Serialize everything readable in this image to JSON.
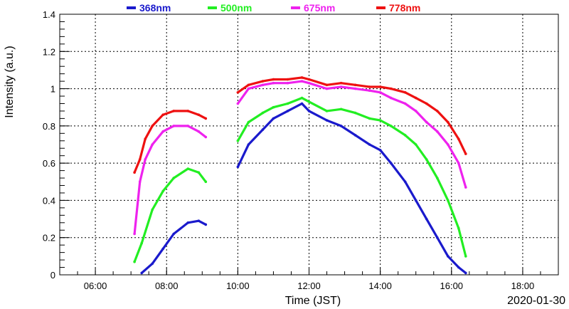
{
  "chart_data": {
    "type": "line",
    "title": "",
    "xlabel": "Time (JST)",
    "ylabel": "Intensity (a.u.)",
    "date_label": "2020-01-30",
    "xlim_hours": [
      5,
      19
    ],
    "ylim": [
      0,
      1.4
    ],
    "x_ticks": [
      {
        "hour": 6,
        "label": "06:00"
      },
      {
        "hour": 8,
        "label": "08:00"
      },
      {
        "hour": 10,
        "label": "10:00"
      },
      {
        "hour": 12,
        "label": "12:00"
      },
      {
        "hour": 14,
        "label": "14:00"
      },
      {
        "hour": 16,
        "label": "16:00"
      },
      {
        "hour": 18,
        "label": "18:00"
      }
    ],
    "y_ticks": [
      {
        "value": 0,
        "label": "0"
      },
      {
        "value": 0.2,
        "label": "0.2"
      },
      {
        "value": 0.4,
        "label": "0.4"
      },
      {
        "value": 0.6,
        "label": "0.6"
      },
      {
        "value": 0.8,
        "label": "0.8"
      },
      {
        "value": 1.0,
        "label": "1"
      },
      {
        "value": 1.2,
        "label": "1.2"
      },
      {
        "value": 1.4,
        "label": "1.4"
      }
    ],
    "grid": true,
    "legend_position": "top",
    "series": [
      {
        "name": "368nm",
        "color": "#1a1acc",
        "segments": [
          {
            "x": [
              7.3,
              7.6,
              7.9,
              8.2,
              8.6,
              8.9,
              9.1
            ],
            "y": [
              0.01,
              0.06,
              0.14,
              0.22,
              0.28,
              0.29,
              0.27
            ]
          },
          {
            "x": [
              10.0,
              10.3,
              10.7,
              11.0,
              11.4,
              11.8,
              12.0,
              12.5,
              12.9,
              13.3,
              13.7,
              14.0,
              14.3,
              14.7,
              15.0,
              15.3,
              15.6,
              15.9,
              16.2,
              16.4
            ],
            "y": [
              0.58,
              0.7,
              0.78,
              0.84,
              0.88,
              0.92,
              0.88,
              0.83,
              0.8,
              0.75,
              0.7,
              0.67,
              0.6,
              0.5,
              0.4,
              0.3,
              0.2,
              0.1,
              0.04,
              0.01
            ]
          }
        ]
      },
      {
        "name": "500nm",
        "color": "#22ee22",
        "segments": [
          {
            "x": [
              7.1,
              7.3,
              7.6,
              7.9,
              8.2,
              8.6,
              8.9,
              9.1
            ],
            "y": [
              0.07,
              0.17,
              0.35,
              0.45,
              0.52,
              0.57,
              0.55,
              0.5
            ]
          },
          {
            "x": [
              10.0,
              10.3,
              10.7,
              11.0,
              11.4,
              11.8,
              12.0,
              12.5,
              12.9,
              13.3,
              13.7,
              14.0,
              14.3,
              14.7,
              15.0,
              15.3,
              15.6,
              15.9,
              16.2,
              16.4
            ],
            "y": [
              0.72,
              0.82,
              0.87,
              0.9,
              0.92,
              0.95,
              0.93,
              0.88,
              0.89,
              0.87,
              0.84,
              0.83,
              0.8,
              0.75,
              0.7,
              0.62,
              0.52,
              0.4,
              0.25,
              0.1
            ]
          }
        ]
      },
      {
        "name": "675nm",
        "color": "#ee22ee",
        "segments": [
          {
            "x": [
              7.1,
              7.25,
              7.4,
              7.6,
              7.9,
              8.2,
              8.6,
              8.9,
              9.1
            ],
            "y": [
              0.22,
              0.5,
              0.62,
              0.7,
              0.77,
              0.8,
              0.8,
              0.77,
              0.74
            ]
          },
          {
            "x": [
              10.0,
              10.3,
              10.7,
              11.0,
              11.4,
              11.8,
              12.0,
              12.5,
              12.9,
              13.3,
              13.7,
              14.0,
              14.3,
              14.7,
              15.0,
              15.3,
              15.6,
              15.9,
              16.2,
              16.4
            ],
            "y": [
              0.92,
              1.0,
              1.02,
              1.03,
              1.03,
              1.04,
              1.03,
              1.0,
              1.01,
              1.0,
              0.99,
              0.98,
              0.95,
              0.92,
              0.88,
              0.82,
              0.77,
              0.7,
              0.6,
              0.47
            ]
          }
        ]
      },
      {
        "name": "778nm",
        "color": "#ee1111",
        "segments": [
          {
            "x": [
              7.1,
              7.25,
              7.4,
              7.6,
              7.9,
              8.2,
              8.6,
              8.9,
              9.1
            ],
            "y": [
              0.55,
              0.62,
              0.73,
              0.8,
              0.86,
              0.88,
              0.88,
              0.86,
              0.84
            ]
          },
          {
            "x": [
              10.0,
              10.3,
              10.7,
              11.0,
              11.4,
              11.8,
              12.0,
              12.5,
              12.9,
              13.3,
              13.7,
              14.0,
              14.3,
              14.7,
              15.0,
              15.3,
              15.6,
              15.9,
              16.2,
              16.4
            ],
            "y": [
              0.98,
              1.02,
              1.04,
              1.05,
              1.05,
              1.06,
              1.05,
              1.02,
              1.03,
              1.02,
              1.01,
              1.01,
              1.0,
              0.98,
              0.95,
              0.92,
              0.88,
              0.82,
              0.73,
              0.65
            ]
          }
        ]
      }
    ]
  }
}
